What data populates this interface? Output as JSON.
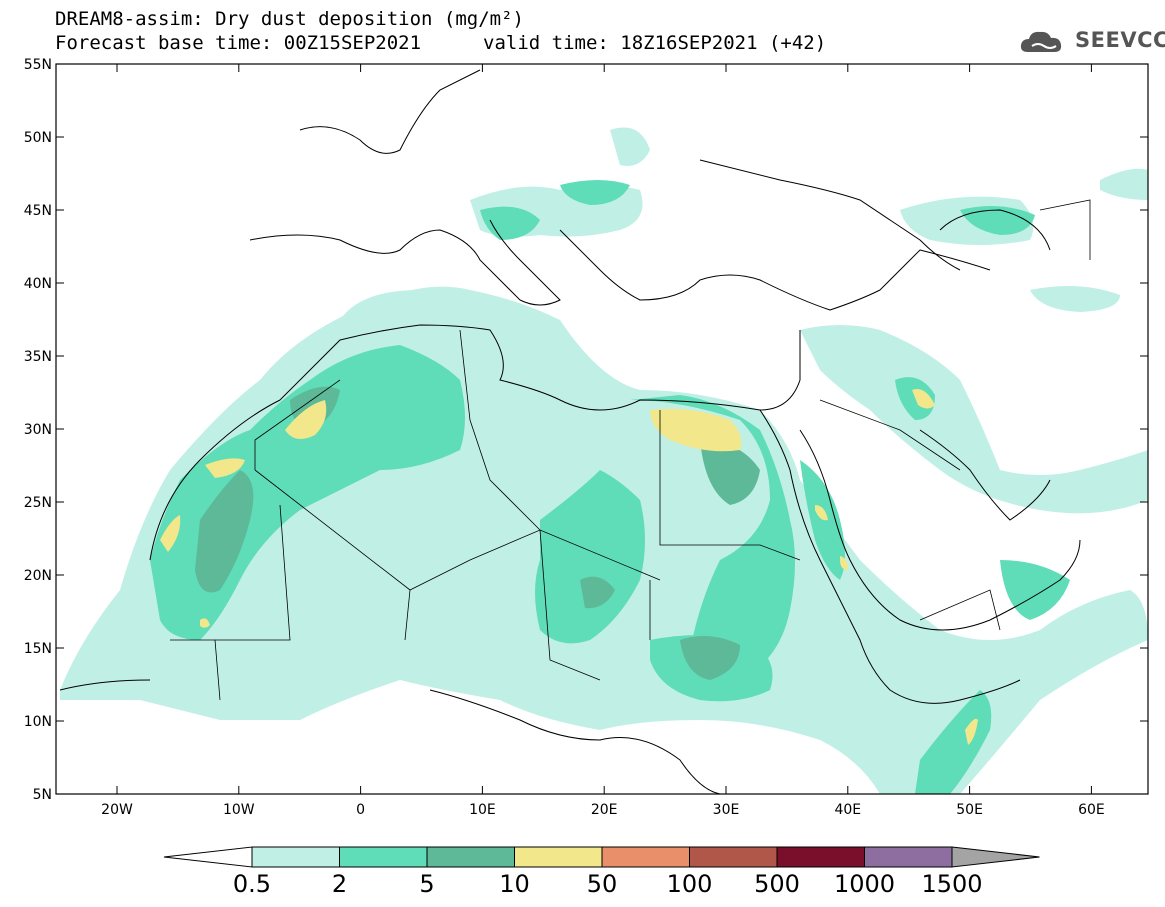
{
  "header": {
    "title_line1": "DREAM8-assim: Dry dust deposition (mg/m²)",
    "title_line2": "Forecast base time: 00Z15SEP2021",
    "valid_time": "valid time: 18Z16SEP2021 (+42)",
    "logo_text": "SEEVCCC"
  },
  "axes": {
    "lat_labels": [
      "55N",
      "50N",
      "45N",
      "40N",
      "35N",
      "30N",
      "25N",
      "20N",
      "15N",
      "10N",
      "5N"
    ],
    "lon_labels": [
      "20W",
      "10W",
      "0",
      "10E",
      "20E",
      "30E",
      "40E",
      "50E",
      "60E"
    ]
  },
  "colorbar": {
    "levels": [
      "0.5",
      "2",
      "5",
      "10",
      "50",
      "100",
      "500",
      "1000",
      "1500"
    ],
    "colors": [
      "#c0efe6",
      "#5fdcb8",
      "#5db997",
      "#f2e78a",
      "#e9906a",
      "#b0574a",
      "#7a0f2c",
      "#8e6ea0",
      "#a4a4a4"
    ]
  }
}
